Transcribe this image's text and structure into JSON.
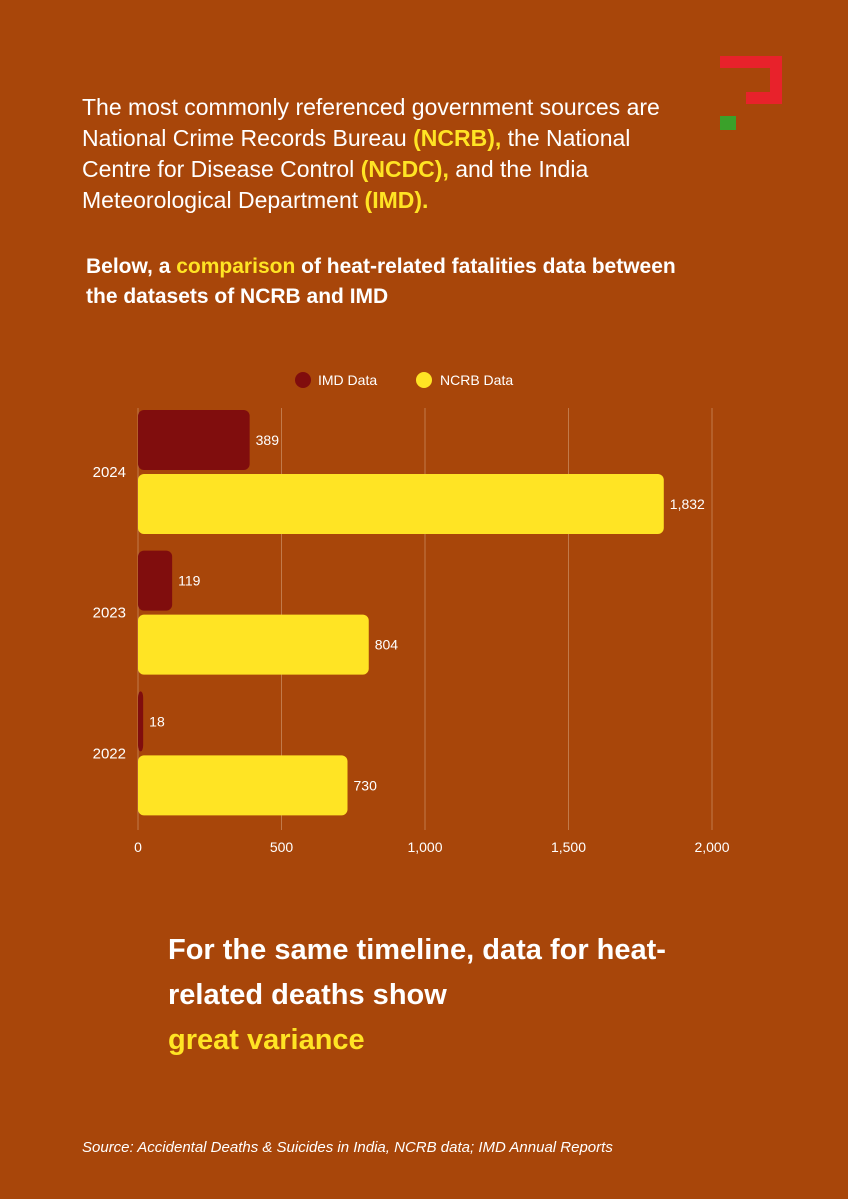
{
  "logo": {
    "icon": "brand-logo-icon",
    "colors": {
      "red": "#e8222b",
      "green": "#3aa12a"
    }
  },
  "intro": {
    "part1": "The most commonly referenced government sources are National Crime Records Bureau ",
    "ncrb": "(NCRB),",
    "part2": " the National Centre for Disease Control ",
    "ncdc": "(NCDC),",
    "part3": " and the India Meteorological Department ",
    "imd": "(IMD)."
  },
  "heading": {
    "part1": "Below, a ",
    "highlight": "comparison",
    "part2": " of heat-related fatalities data between the datasets of NCRB and IMD"
  },
  "chart_data": {
    "type": "bar",
    "orientation": "horizontal",
    "categories": [
      "2024",
      "2023",
      "2022"
    ],
    "series": [
      {
        "name": "IMD Data",
        "values": [
          389,
          119,
          18
        ],
        "value_labels": [
          "389",
          "119",
          "18"
        ],
        "color": "#800d0d"
      },
      {
        "name": "NCRB Data",
        "values": [
          1832,
          804,
          730
        ],
        "value_labels": [
          "1,832",
          "804",
          "730"
        ],
        "color": "#ffe424"
      }
    ],
    "xlim": [
      0,
      2000
    ],
    "xticks": [
      0,
      500,
      1000,
      1500,
      2000
    ],
    "xtick_labels": [
      "0",
      "500",
      "1,000",
      "1,500",
      "2,000"
    ],
    "grid": true,
    "legend": "top-center"
  },
  "takeaway": {
    "line1": "For the same timeline, data for heat-related deaths show",
    "highlight": "great variance"
  },
  "source": "Source: Accidental Deaths & Suicides in India, NCRB data; IMD Annual Reports",
  "colors": {
    "background": "#a8460a",
    "accent": "#ffe424",
    "text": "#ffffff"
  }
}
